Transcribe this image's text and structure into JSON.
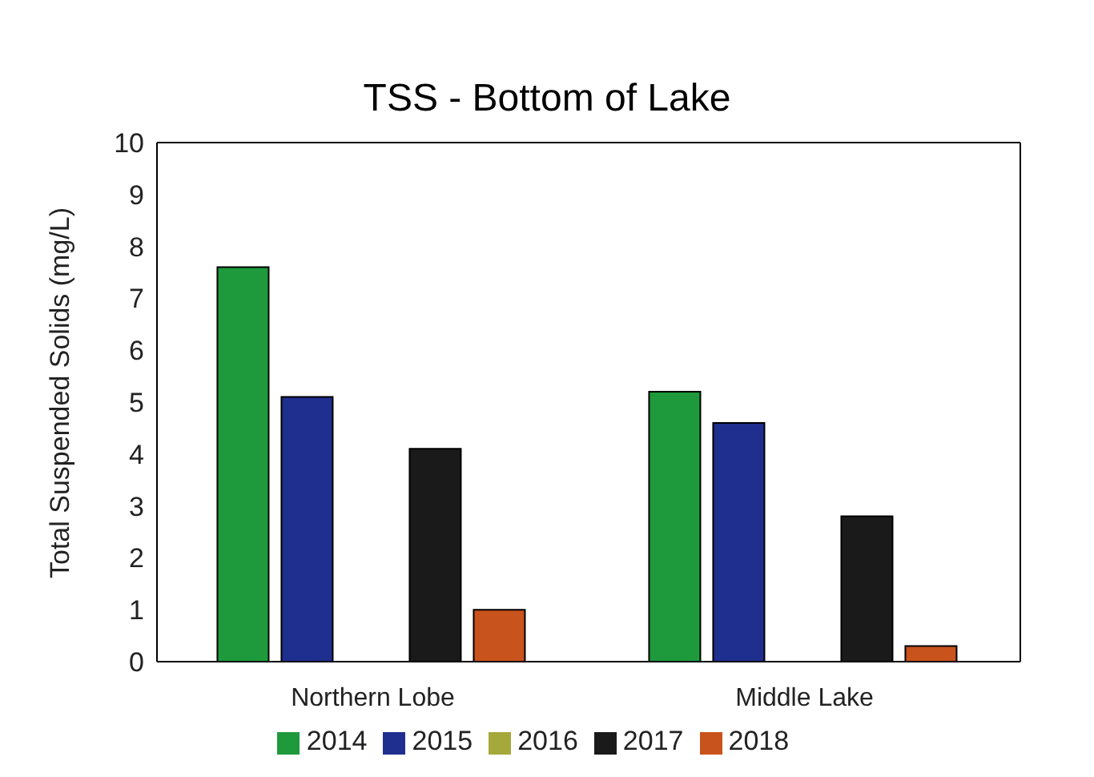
{
  "chart_data": {
    "type": "bar",
    "title": "TSS - Bottom of Lake",
    "ylabel": "Total Suspended Solids (mg/L)",
    "categories": [
      "Northern Lobe",
      "Middle Lake"
    ],
    "series": [
      {
        "name": "2014",
        "color": "#1e9a3c",
        "values": [
          7.6,
          5.2
        ]
      },
      {
        "name": "2015",
        "color": "#1f2f8f",
        "values": [
          5.1,
          4.6
        ]
      },
      {
        "name": "2016",
        "color": "#a5a83a",
        "values": [
          null,
          null
        ]
      },
      {
        "name": "2017",
        "color": "#1a1a1a",
        "values": [
          4.1,
          2.8
        ]
      },
      {
        "name": "2018",
        "color": "#c9531c",
        "values": [
          1.0,
          0.3
        ]
      }
    ],
    "ylim": [
      0,
      10
    ],
    "yticks": [
      0,
      1,
      2,
      3,
      4,
      5,
      6,
      7,
      8,
      9,
      10
    ],
    "grid": false,
    "legend": "bottom"
  }
}
